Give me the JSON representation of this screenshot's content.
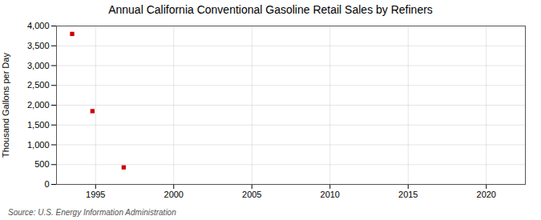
{
  "chart_data": {
    "type": "scatter",
    "title": "Annual California Conventional Gasoline Retail Sales by Refiners",
    "ylabel": "Thousand Gallons per Day",
    "source": "Source: U.S. Energy Information Administration",
    "x": [
      1993.5,
      1994.8,
      1996.8
    ],
    "values": [
      3800,
      1850,
      430
    ],
    "color": "#cc0000",
    "marker": "square",
    "xlim": [
      1992.5,
      2022.5
    ],
    "ylim": [
      0,
      4000
    ],
    "xticks": [
      1995,
      2000,
      2005,
      2010,
      2015,
      2020
    ],
    "yticks": [
      0,
      500,
      {
        "value": 1000,
        "label": "1,000"
      },
      {
        "value": 1500,
        "label": "1,500"
      },
      {
        "value": 2000,
        "label": "2,000"
      },
      {
        "value": 2500,
        "label": "2,500"
      },
      {
        "value": 3000,
        "label": "3,000"
      },
      {
        "value": 3500,
        "label": "3,500"
      },
      {
        "value": 4000,
        "label": "4,000"
      }
    ],
    "grid": true
  }
}
